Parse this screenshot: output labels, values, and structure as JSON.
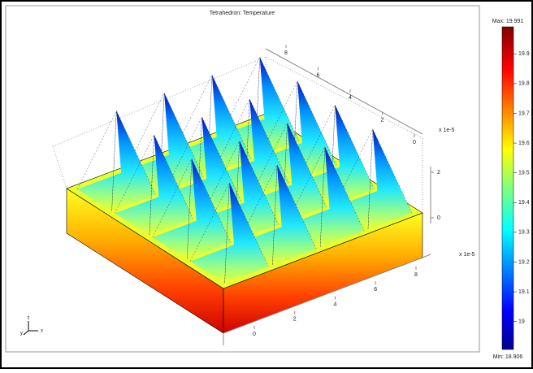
{
  "chart_data": {
    "type": "surface3d",
    "title": "Tetrahedron: Temperature",
    "colormap": "jet",
    "colorbar": {
      "lim": [
        18.906,
        19.991
      ],
      "max": {
        "value": 19.991,
        "label": "Max: 19.991"
      },
      "min": {
        "value": 18.906,
        "label": "Min: 18.906"
      },
      "ticks": [
        19,
        19.1,
        19.2,
        19.3,
        19.4,
        19.5,
        19.6,
        19.7,
        19.8,
        19.9
      ]
    },
    "x_axis": {
      "label": "x 1e-5",
      "ticks": [
        0,
        2,
        4,
        6,
        8
      ]
    },
    "y_axis": {
      "ticks": [
        0,
        2,
        4,
        6,
        8
      ]
    },
    "z_axis": {
      "label": "x 1e-5",
      "ticks": [
        0,
        2
      ]
    },
    "axis_triad": [
      "x",
      "y",
      "z"
    ]
  }
}
